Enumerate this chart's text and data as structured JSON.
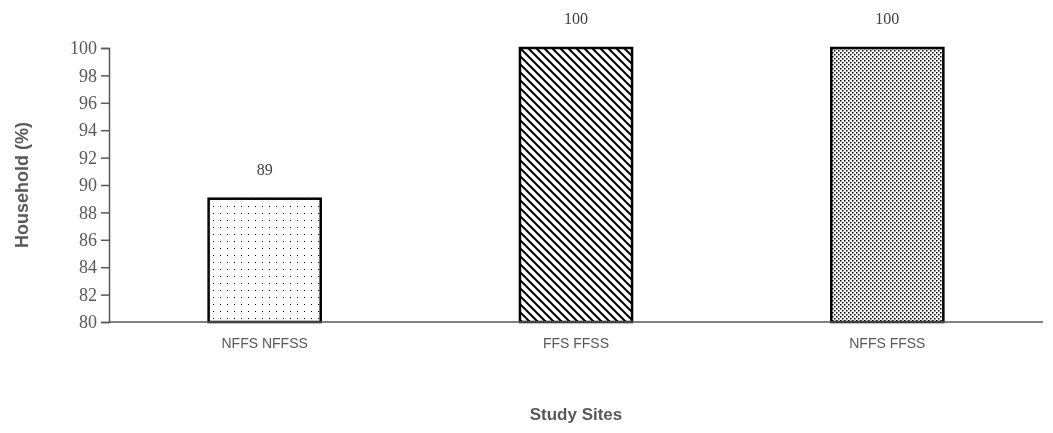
{
  "chart_data": {
    "type": "bar",
    "xlabel": "Study Sites",
    "ylabel": "Household (%)",
    "categories": [
      "NFFS NFFSS",
      "FFS FFSS",
      "NFFS FFSS"
    ],
    "values": [
      89,
      100,
      100
    ],
    "color": "#000000",
    "ylim": [
      80,
      100
    ],
    "yticks": [
      80,
      82,
      84,
      86,
      88,
      90,
      92,
      94,
      96,
      98,
      100
    ],
    "data_labels": true
  }
}
